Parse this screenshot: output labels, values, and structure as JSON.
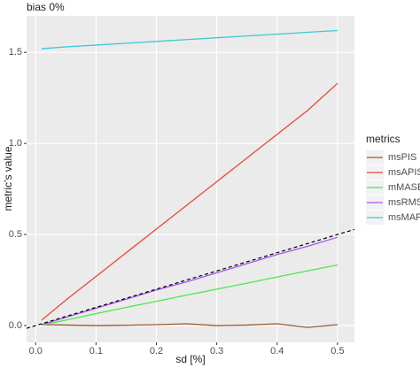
{
  "chart_data": {
    "type": "line",
    "title": "bias 0%",
    "x_label": "sd [%]",
    "y_label": "metric's value",
    "legend_title": "metrics",
    "x": [
      0.01,
      0.05,
      0.1,
      0.15,
      0.2,
      0.25,
      0.3,
      0.35,
      0.4,
      0.45,
      0.5
    ],
    "series": [
      {
        "name": "msPIS",
        "color": "#9C5A2E",
        "values": [
          0.005,
          0.003,
          0,
          0.002,
          0.005,
          0.01,
          0,
          0.003,
          0.01,
          -0.01,
          0.005
        ]
      },
      {
        "name": "msAPIS",
        "color": "#E8473A",
        "values": [
          0.03,
          0.14,
          0.27,
          0.4,
          0.53,
          0.66,
          0.79,
          0.92,
          1.05,
          1.18,
          1.33
        ]
      },
      {
        "name": "mMASE",
        "color": "#4CE64C",
        "values": [
          0.003,
          0.03,
          0.066,
          0.1,
          0.133,
          0.167,
          0.2,
          0.233,
          0.267,
          0.3,
          0.333
        ]
      },
      {
        "name": "msRMSE",
        "color": "#A855F0",
        "values": [
          0.005,
          0.045,
          0.095,
          0.145,
          0.195,
          0.24,
          0.29,
          0.34,
          0.39,
          0.435,
          0.485
        ]
      },
      {
        "name": "msMAPE",
        "color": "#3CC8D8",
        "values": [
          1.52,
          1.53,
          1.54,
          1.55,
          1.56,
          1.57,
          1.58,
          1.59,
          1.6,
          1.61,
          1.62
        ]
      }
    ],
    "abline": {
      "intercept": 0,
      "slope": 1
    },
    "xlim": [
      -0.015,
      0.528
    ],
    "ylim": [
      -0.092,
      1.7
    ],
    "xticks": [
      {
        "value": 0,
        "label": "0.0"
      },
      0.1,
      0.2,
      0.3,
      0.4,
      0.5
    ],
    "yticks": [
      {
        "value": 0,
        "label": "0.0"
      },
      0.5,
      {
        "value": 1,
        "label": "1.0"
      },
      1.5
    ],
    "grid": true
  }
}
